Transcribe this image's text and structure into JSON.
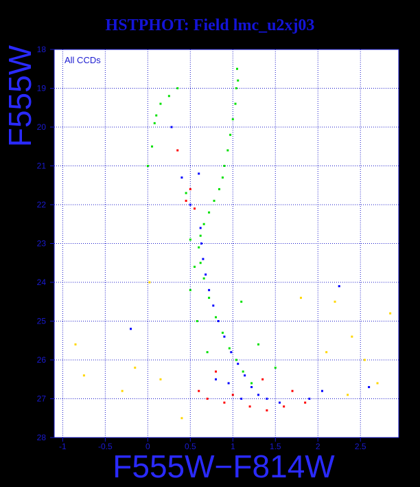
{
  "chart_data": {
    "type": "scatter",
    "title": "HSTPHOT: Field lmc_u2xj03",
    "xlabel": "F555W−F814W",
    "ylabel": "F555W",
    "annotation": "All CCDs",
    "xlim": [
      -1.1,
      2.95
    ],
    "ylim": [
      28,
      18
    ],
    "y_inverted": true,
    "grid": true,
    "background": "#ffffff",
    "page_background": "#000000",
    "grid_color": "#1414c8",
    "x_ticks": [
      -1,
      -0.5,
      0,
      0.5,
      1,
      1.5,
      2,
      2.5
    ],
    "x_tick_labels": [
      "-1",
      "-0.5",
      "0",
      "0.5",
      "1",
      "1.5",
      "2",
      "2.5"
    ],
    "y_ticks": [
      18,
      19,
      20,
      21,
      22,
      23,
      24,
      25,
      26,
      27,
      28
    ],
    "y_tick_labels": [
      "18",
      "19",
      "20",
      "21",
      "22",
      "23",
      "24",
      "25",
      "26",
      "27",
      "28"
    ],
    "series": [
      {
        "color": "#00e000",
        "points": [
          [
            1.05,
            18.5
          ],
          [
            1.06,
            18.8
          ],
          [
            1.04,
            19.0
          ],
          [
            1.03,
            19.4
          ],
          [
            1.0,
            19.8
          ],
          [
            0.97,
            20.2
          ],
          [
            0.94,
            20.6
          ],
          [
            0.9,
            21.0
          ],
          [
            0.88,
            21.3
          ],
          [
            0.84,
            21.6
          ],
          [
            0.78,
            21.9
          ],
          [
            0.72,
            22.2
          ],
          [
            0.66,
            22.5
          ],
          [
            0.62,
            22.8
          ],
          [
            0.6,
            23.1
          ],
          [
            0.62,
            23.5
          ],
          [
            0.66,
            23.9
          ],
          [
            0.72,
            24.4
          ],
          [
            0.8,
            24.9
          ],
          [
            0.88,
            25.3
          ],
          [
            0.96,
            25.7
          ],
          [
            1.04,
            26.0
          ],
          [
            1.12,
            26.3
          ],
          [
            1.22,
            26.6
          ],
          [
            0.1,
            19.7
          ],
          [
            0.08,
            19.9
          ],
          [
            0.15,
            19.4
          ],
          [
            0.25,
            19.2
          ],
          [
            0.05,
            20.5
          ],
          [
            0.0,
            21.0
          ],
          [
            0.55,
            23.6
          ],
          [
            0.5,
            24.2
          ],
          [
            0.58,
            25.0
          ],
          [
            0.7,
            25.8
          ],
          [
            1.3,
            25.6
          ],
          [
            1.5,
            26.2
          ],
          [
            0.35,
            19.0
          ],
          [
            0.45,
            21.7
          ],
          [
            0.5,
            22.9
          ],
          [
            1.1,
            24.5
          ]
        ]
      },
      {
        "color": "#0000ff",
        "points": [
          [
            0.62,
            22.6
          ],
          [
            0.63,
            23.0
          ],
          [
            0.65,
            23.4
          ],
          [
            0.68,
            23.8
          ],
          [
            0.72,
            24.2
          ],
          [
            0.77,
            24.6
          ],
          [
            0.83,
            25.0
          ],
          [
            0.9,
            25.4
          ],
          [
            0.98,
            25.8
          ],
          [
            1.06,
            26.1
          ],
          [
            1.14,
            26.4
          ],
          [
            1.22,
            26.7
          ],
          [
            1.3,
            26.9
          ],
          [
            1.4,
            27.0
          ],
          [
            1.55,
            27.1
          ],
          [
            0.95,
            26.6
          ],
          [
            1.1,
            27.0
          ],
          [
            0.8,
            26.5
          ],
          [
            0.5,
            22.0
          ],
          [
            0.28,
            20.0
          ],
          [
            0.4,
            21.3
          ],
          [
            1.9,
            27.0
          ],
          [
            2.05,
            26.8
          ],
          [
            2.25,
            24.1
          ],
          [
            2.6,
            26.7
          ],
          [
            -0.2,
            25.2
          ],
          [
            0.6,
            21.2
          ]
        ]
      },
      {
        "color": "#ff0000",
        "points": [
          [
            0.5,
            21.6
          ],
          [
            0.55,
            22.1
          ],
          [
            0.45,
            21.9
          ],
          [
            0.8,
            26.3
          ],
          [
            1.0,
            26.9
          ],
          [
            1.2,
            27.2
          ],
          [
            1.4,
            27.3
          ],
          [
            1.6,
            27.2
          ],
          [
            0.9,
            27.1
          ],
          [
            1.7,
            26.8
          ],
          [
            1.85,
            27.1
          ],
          [
            0.35,
            20.6
          ],
          [
            0.7,
            27.0
          ],
          [
            1.35,
            26.5
          ],
          [
            0.6,
            26.8
          ]
        ]
      },
      {
        "color": "#ffd700",
        "points": [
          [
            -0.85,
            25.6
          ],
          [
            -0.75,
            26.4
          ],
          [
            -0.3,
            26.8
          ],
          [
            -0.15,
            26.2
          ],
          [
            0.15,
            26.5
          ],
          [
            0.4,
            27.5
          ],
          [
            2.2,
            24.5
          ],
          [
            2.4,
            25.4
          ],
          [
            2.55,
            26.0
          ],
          [
            2.7,
            26.6
          ],
          [
            2.85,
            24.8
          ],
          [
            2.35,
            26.9
          ],
          [
            1.8,
            24.4
          ],
          [
            2.1,
            25.8
          ],
          [
            0.02,
            24.0
          ]
        ]
      }
    ]
  }
}
